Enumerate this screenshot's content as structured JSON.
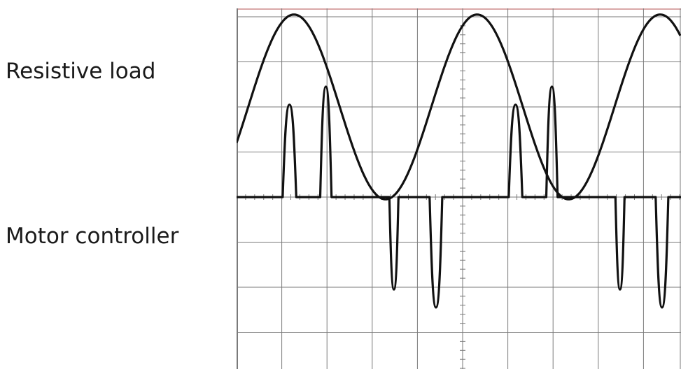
{
  "labels": {
    "resistive": "Resistive load",
    "motor": "Motor controller"
  },
  "chart_data": {
    "type": "line",
    "title": "",
    "xlabel": "",
    "ylabel": "",
    "grid": true,
    "colors": {
      "trace": "#111111",
      "grid": "#7a7a7a",
      "border": "#d9a8a8"
    },
    "divisions": {
      "x": 10,
      "y": 8
    },
    "xlim": [
      0,
      10
    ],
    "ylim": [
      -4,
      4
    ],
    "series": [
      {
        "label_ref": "labels.resistive",
        "waveform": "sine",
        "amplitude_div": 2.05,
        "offset_div": 2.0,
        "period_div": 4.05,
        "phase_peak_div": 1.27
      },
      {
        "label_ref": "labels.motor",
        "waveform": "pulses",
        "baseline_div": 0.0,
        "pulses": [
          {
            "start": 1.02,
            "end": 1.32,
            "peak": 2.05
          },
          {
            "start": 1.85,
            "end": 2.1,
            "peak": 2.45
          },
          {
            "start": 3.38,
            "end": 3.58,
            "peak": -2.05
          },
          {
            "start": 4.27,
            "end": 4.55,
            "peak": -2.45
          },
          {
            "start": 6.02,
            "end": 6.32,
            "peak": 2.05
          },
          {
            "start": 6.85,
            "end": 7.1,
            "peak": 2.45
          },
          {
            "start": 8.38,
            "end": 8.58,
            "peak": -2.05
          },
          {
            "start": 9.27,
            "end": 9.55,
            "peak": -2.45
          }
        ]
      }
    ]
  }
}
